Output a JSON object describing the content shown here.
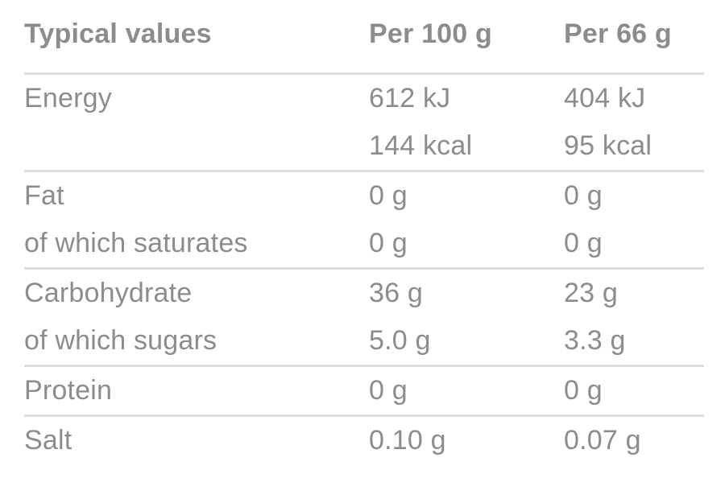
{
  "colors": {
    "background": "#FFFFFF",
    "text": "#8C8C8C",
    "rule": "#DEDEDC"
  },
  "table": {
    "header": {
      "label": "Typical values",
      "per100": "Per 100 g",
      "per66": "Per 66 g"
    },
    "rows": [
      {
        "label": "Energy",
        "per100": "612 kJ",
        "per66": "404 kJ"
      },
      {
        "label": "",
        "per100": "144 kcal",
        "per66": "95 kcal"
      },
      {
        "label": "Fat",
        "per100": "0 g",
        "per66": "0 g"
      },
      {
        "label": "of which saturates",
        "per100": "0 g",
        "per66": "0 g"
      },
      {
        "label": "Carbohydrate",
        "per100": "36 g",
        "per66": "23 g"
      },
      {
        "label": "of which sugars",
        "per100": "5.0 g",
        "per66": "3.3 g"
      },
      {
        "label": "Protein",
        "per100": "0 g",
        "per66": "0 g"
      },
      {
        "label": "Salt",
        "per100": "0.10 g",
        "per66": "0.07 g"
      }
    ]
  }
}
